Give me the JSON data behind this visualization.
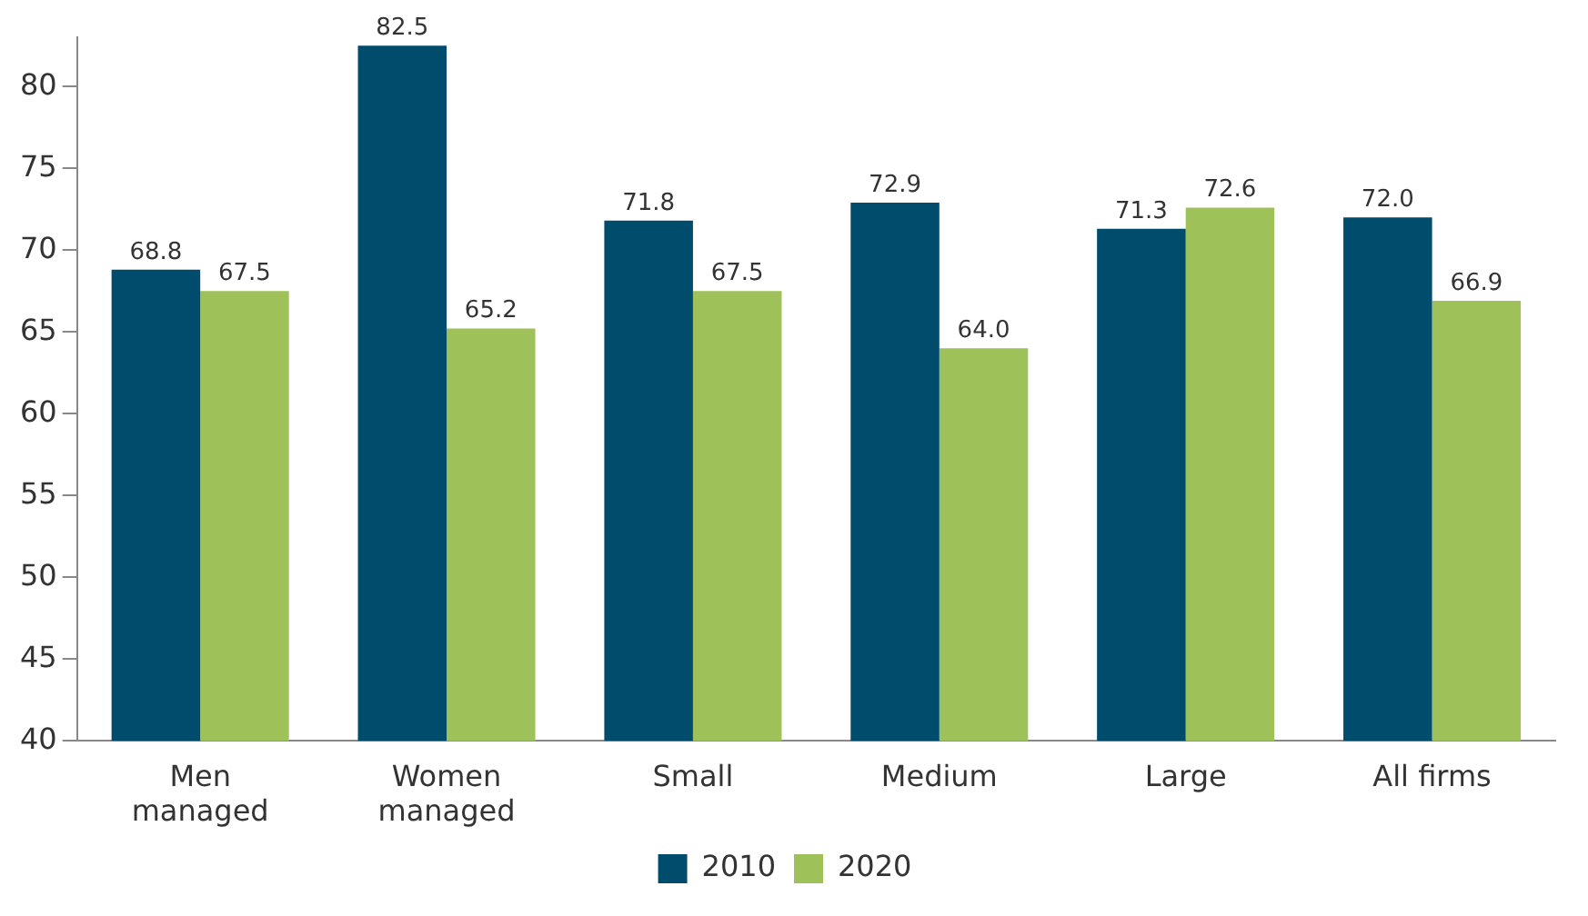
{
  "chart_data": {
    "type": "bar",
    "categories": [
      "Men managed",
      "Women managed",
      "Small",
      "Medium",
      "Large",
      "All firms"
    ],
    "series": [
      {
        "name": "2010",
        "color": "#004c6d",
        "values": [
          68.8,
          82.5,
          71.8,
          72.9,
          71.3,
          72.0
        ],
        "value_labels": [
          "68.8",
          "82.5",
          "71.8",
          "72.9",
          "71.3",
          "72.0"
        ]
      },
      {
        "name": "2020",
        "color": "#9fc15a",
        "values": [
          67.5,
          65.2,
          67.5,
          64.0,
          72.6,
          66.9
        ],
        "value_labels": [
          "67.5",
          "65.2",
          "67.5",
          "64.0",
          "72.6",
          "66.9"
        ]
      }
    ],
    "ylim": [
      40,
      83
    ],
    "yticks": [
      40,
      45,
      50,
      55,
      60,
      65,
      70,
      75,
      80
    ],
    "grid": false,
    "legend": "bottom"
  }
}
